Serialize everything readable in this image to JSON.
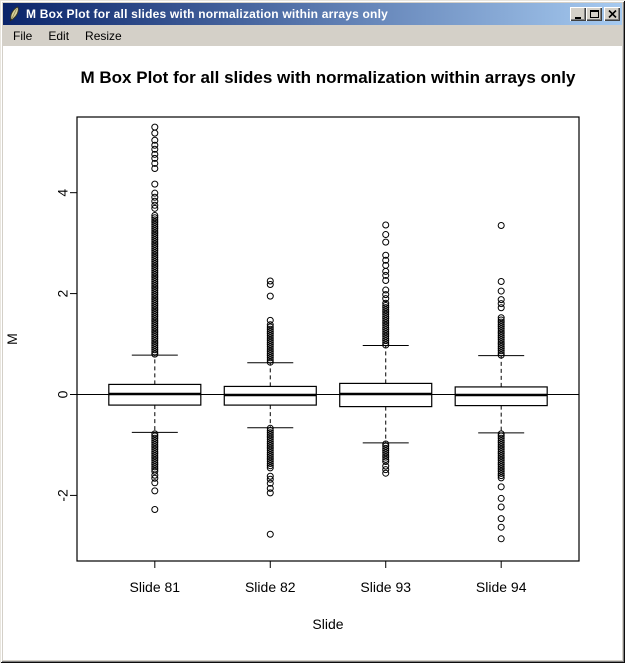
{
  "window": {
    "title": "M Box Plot for all slides with normalization within arrays only"
  },
  "menu": {
    "items": [
      {
        "label": "File"
      },
      {
        "label": "Edit"
      },
      {
        "label": "Resize"
      }
    ]
  },
  "colors": {
    "titlebar_gradient_start": "#0a246a",
    "titlebar_gradient_end": "#a6caf0",
    "chrome": "#d4d0c8",
    "plot_background": "#ffffff",
    "plot_foreground": "#000000"
  },
  "icons": {
    "app_icon": "quill-pen-icon",
    "minimize": "minimize-icon",
    "maximize": "maximize-icon",
    "close": "close-icon"
  },
  "chart_data": {
    "type": "boxplot",
    "title": "M Box Plot for all slides with normalization within arrays only",
    "xlabel": "Slide",
    "ylabel": "M",
    "ylim": [
      -3.3,
      5.5
    ],
    "yticks": [
      -2,
      0,
      2,
      4
    ],
    "grid": false,
    "reference_line_y": 0,
    "categories": [
      "Slide 81",
      "Slide 82",
      "Slide 93",
      "Slide 94"
    ],
    "series": [
      {
        "name": "Slide 81",
        "q1": -0.21,
        "median": 0.01,
        "q3": 0.2,
        "whisker_low": -0.75,
        "whisker_high": 0.78,
        "outlier_runs": [
          [
            0.8,
            3.58
          ],
          [
            -0.78,
            -1.55
          ]
        ],
        "outliers": [
          3.69,
          3.75,
          3.83,
          3.91,
          3.99,
          4.17,
          4.48,
          4.58,
          4.68,
          4.76,
          4.86,
          4.94,
          5.04,
          5.18,
          5.3,
          -1.6,
          -1.66,
          -1.75,
          -1.91,
          -2.28
        ]
      },
      {
        "name": "Slide 82",
        "q1": -0.21,
        "median": -0.01,
        "q3": 0.16,
        "whisker_low": -0.66,
        "whisker_high": 0.63,
        "outlier_runs": [
          [
            0.64,
            1.42
          ],
          [
            -0.67,
            -1.48
          ]
        ],
        "outliers": [
          1.47,
          1.95,
          2.18,
          2.25,
          -1.62,
          -1.68,
          -1.76,
          -1.86,
          -1.95,
          -2.77
        ]
      },
      {
        "name": "Slide 93",
        "q1": -0.24,
        "median": 0.01,
        "q3": 0.22,
        "whisker_low": -0.96,
        "whisker_high": 0.97,
        "outlier_runs": [
          [
            0.98,
            1.83
          ],
          [
            -0.98,
            -1.35
          ]
        ],
        "outliers": [
          1.9,
          1.98,
          2.07,
          2.26,
          2.36,
          2.44,
          2.56,
          2.66,
          2.76,
          3.02,
          3.17,
          3.36,
          -1.42,
          -1.49,
          -1.56
        ]
      },
      {
        "name": "Slide 94",
        "q1": -0.22,
        "median": -0.01,
        "q3": 0.15,
        "whisker_low": -0.76,
        "whisker_high": 0.77,
        "outlier_runs": [
          [
            0.78,
            1.55
          ],
          [
            -0.78,
            -1.66
          ]
        ],
        "outliers": [
          1.72,
          1.8,
          1.88,
          2.05,
          2.24,
          3.35,
          -1.83,
          -2.06,
          -2.23,
          -2.46,
          -2.63,
          -2.86
        ]
      }
    ]
  }
}
